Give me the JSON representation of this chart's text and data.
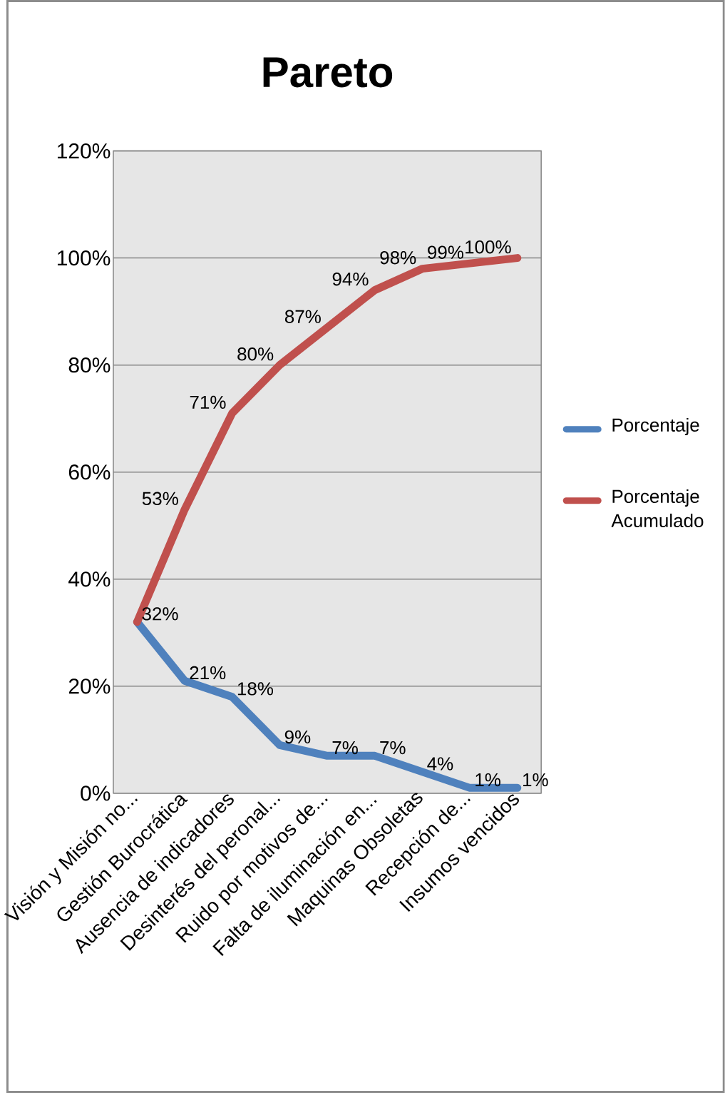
{
  "chart_data": {
    "type": "line",
    "title": "Pareto",
    "categories": [
      "Visión y Misión no...",
      "Gestión Burocrática",
      "Ausencia de indicadores",
      "Desinterés del peronal...",
      "Ruido por motivos de...",
      "Falta de iluminación en...",
      "Maquinas Obsoletas",
      "Recepción de...",
      "Insumos vencidos"
    ],
    "series": [
      {
        "name": "Porcentaje",
        "color": "#4f81bd",
        "values": [
          32,
          21,
          18,
          9,
          7,
          7,
          4,
          1,
          1
        ],
        "value_labels": [
          "32%",
          "21%",
          "18%",
          "9%",
          "7%",
          "7%",
          "4%",
          "1%",
          "1%"
        ]
      },
      {
        "name": "Porcentaje Acumulado",
        "color": "#c0504d",
        "values": [
          32,
          53,
          71,
          80,
          87,
          94,
          98,
          99,
          100
        ],
        "value_labels": [
          null,
          "53%",
          "71%",
          "80%",
          "87%",
          "94%",
          "98%",
          "99%",
          "100%"
        ]
      }
    ],
    "ylim": [
      0,
      120
    ],
    "yticks": [
      {
        "value": 0,
        "label": "0%"
      },
      {
        "value": 20,
        "label": "20%"
      },
      {
        "value": 40,
        "label": "40%"
      },
      {
        "value": 60,
        "label": "60%"
      },
      {
        "value": 80,
        "label": "80%"
      },
      {
        "value": 100,
        "label": "100%"
      },
      {
        "value": 120,
        "label": "120%"
      }
    ],
    "grid": "y",
    "legend": "right",
    "marker": "none",
    "line_style": "solid"
  }
}
